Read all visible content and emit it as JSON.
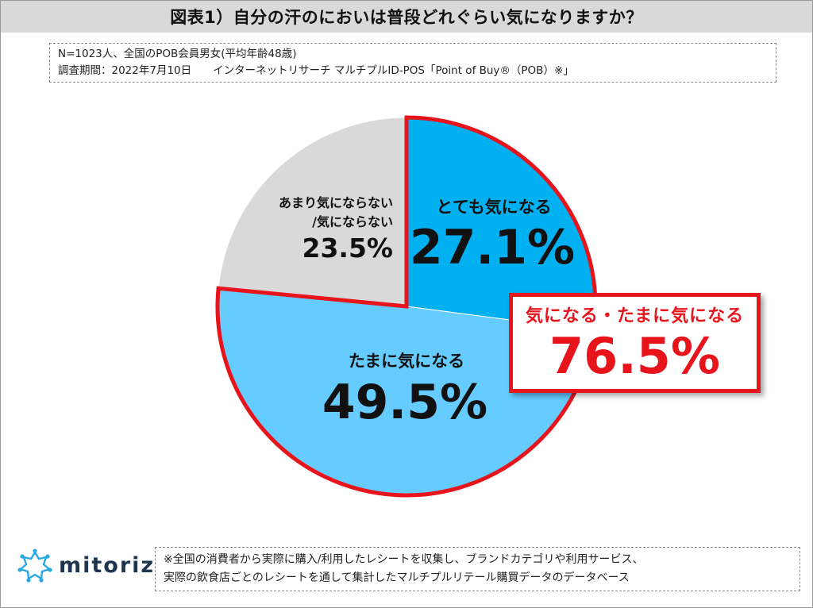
{
  "header": {
    "title": "図表1）自分の汗のにおいは普段どれぐらい気になりますか？"
  },
  "meta": {
    "line1": "N=1023人、全国のPOB会員男女(平均年齢48歳)",
    "line2": "調査期間：2022年7月10日　　インターネットリサーチ マルチプルID-POS「Point of Buy®（POB）※」"
  },
  "chart_data": {
    "type": "pie",
    "start": "12 o'clock, clockwise",
    "slices": [
      {
        "label": "とても気になる",
        "value": 27.1,
        "value_label": "27.1%",
        "color": "#00b0f0",
        "highlight": true
      },
      {
        "label": "たまに気になる",
        "value": 49.5,
        "value_label": "49.5%",
        "color": "#66ccff",
        "highlight": true
      },
      {
        "label_lines": [
          "あまり気にならない",
          "/気にならない"
        ],
        "value": 23.5,
        "value_label": "23.5%",
        "color": "#d9d9d9",
        "highlight": false
      }
    ],
    "highlight_color": "#e8141c",
    "callout": {
      "label": "気になる・たまに気になる",
      "value": "76.5%"
    }
  },
  "logo": {
    "text": "mitoriz",
    "color": "#1e3550",
    "icon": "network-star-icon"
  },
  "footnote": {
    "line1": "※全国の消費者から実際に購入/利用したレシートを収集し、ブランドカテゴリや利用サービス、",
    "line2": "実際の飲食店ごとのレシートを通して集計したマルチプルリテール購買データのデータベース"
  }
}
